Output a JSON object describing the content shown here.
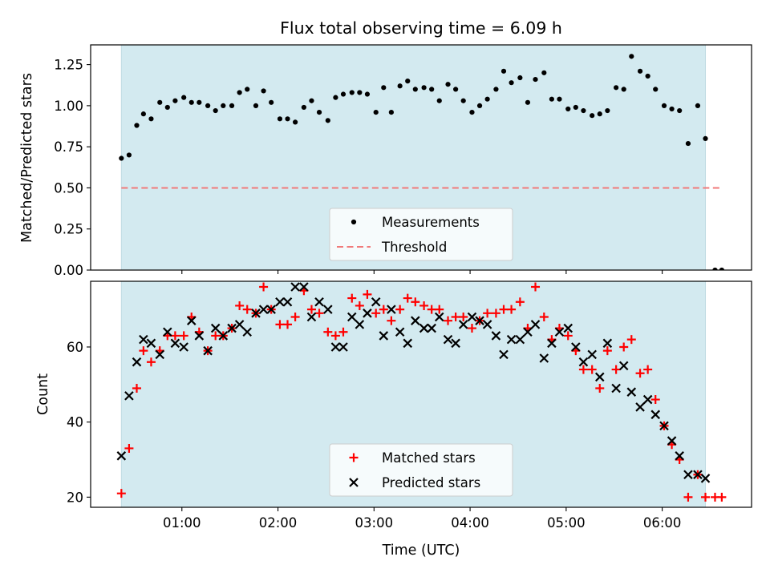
{
  "title": "Flux total observing time = 6.09 h",
  "colors": {
    "shade": "#d3eaf0",
    "matched": "#ff0000",
    "predicted": "#000000",
    "threshold": "#f07a7a",
    "measurement": "#000000"
  },
  "chart_data": [
    {
      "type": "scatter",
      "ylabel": "Matched/Predicted stars",
      "xlabel": "",
      "xlim": [
        0.05,
        6.93
      ],
      "ylim": [
        0,
        1.37
      ],
      "yticks": [
        0.0,
        0.25,
        0.5,
        0.75,
        1.0,
        1.25
      ],
      "ytick_labels": [
        "0.00",
        "0.25",
        "0.50",
        "0.75",
        "1.00",
        "1.25"
      ],
      "shaded_span": [
        0.37,
        6.45
      ],
      "legend_position": "lower center",
      "legend": [
        "Measurements",
        "Threshold"
      ],
      "threshold": {
        "name": "Threshold",
        "y": 0.5,
        "x": [
          0.37,
          6.62
        ]
      },
      "series": [
        {
          "name": "Measurements",
          "x": [
            0.37,
            0.45,
            0.53,
            0.6,
            0.68,
            0.77,
            0.85,
            0.93,
            1.02,
            1.1,
            1.18,
            1.27,
            1.35,
            1.43,
            1.52,
            1.6,
            1.68,
            1.77,
            1.85,
            1.93,
            2.02,
            2.1,
            2.18,
            2.27,
            2.35,
            2.43,
            2.52,
            2.6,
            2.68,
            2.77,
            2.85,
            2.93,
            3.02,
            3.1,
            3.18,
            3.27,
            3.35,
            3.43,
            3.52,
            3.6,
            3.68,
            3.77,
            3.85,
            3.93,
            4.02,
            4.1,
            4.18,
            4.27,
            4.35,
            4.43,
            4.52,
            4.6,
            4.68,
            4.77,
            4.85,
            4.93,
            5.02,
            5.1,
            5.18,
            5.27,
            5.35,
            5.43,
            5.52,
            5.6,
            5.68,
            5.77,
            5.85,
            5.93,
            6.02,
            6.1,
            6.18,
            6.27,
            6.37,
            6.45,
            6.55,
            6.62
          ],
          "y": [
            0.68,
            0.7,
            0.88,
            0.95,
            0.92,
            1.02,
            0.99,
            1.03,
            1.05,
            1.02,
            1.02,
            1.0,
            0.97,
            1.0,
            1.0,
            1.08,
            1.1,
            1.0,
            1.09,
            1.02,
            0.92,
            0.92,
            0.9,
            0.99,
            1.03,
            0.96,
            0.91,
            1.05,
            1.07,
            1.08,
            1.08,
            1.07,
            0.96,
            1.11,
            0.96,
            1.12,
            1.15,
            1.1,
            1.11,
            1.1,
            1.03,
            1.13,
            1.1,
            1.03,
            0.96,
            1.0,
            1.04,
            1.1,
            1.21,
            1.14,
            1.17,
            1.02,
            1.16,
            1.2,
            1.04,
            1.04,
            0.98,
            0.99,
            0.97,
            0.94,
            0.95,
            0.97,
            1.11,
            1.1,
            1.3,
            1.21,
            1.18,
            1.1,
            1.0,
            0.98,
            0.97,
            0.77,
            1.0,
            0.8,
            0.0,
            0.0
          ]
        }
      ]
    },
    {
      "type": "scatter",
      "xlabel": "Time (UTC)",
      "ylabel": "Count",
      "xlim": [
        0.05,
        6.93
      ],
      "ylim": [
        17.3,
        77.5
      ],
      "yticks": [
        20,
        40,
        60
      ],
      "ytick_labels": [
        "20",
        "40",
        "60"
      ],
      "xticks": [
        1,
        2,
        3,
        4,
        5,
        6
      ],
      "xtick_labels": [
        "01:00",
        "02:00",
        "03:00",
        "04:00",
        "05:00",
        "06:00"
      ],
      "shaded_span": [
        0.37,
        6.45
      ],
      "legend_position": "lower center",
      "legend": [
        "Matched stars",
        "Predicted stars"
      ],
      "series": [
        {
          "name": "Matched stars",
          "marker": "+",
          "x": [
            0.37,
            0.45,
            0.53,
            0.6,
            0.68,
            0.77,
            0.85,
            0.93,
            1.02,
            1.1,
            1.18,
            1.27,
            1.35,
            1.43,
            1.52,
            1.6,
            1.68,
            1.77,
            1.85,
            1.93,
            2.02,
            2.1,
            2.18,
            2.27,
            2.35,
            2.43,
            2.52,
            2.6,
            2.68,
            2.77,
            2.85,
            2.93,
            3.02,
            3.1,
            3.18,
            3.27,
            3.35,
            3.43,
            3.52,
            3.6,
            3.68,
            3.77,
            3.85,
            3.93,
            4.02,
            4.1,
            4.18,
            4.27,
            4.35,
            4.43,
            4.52,
            4.6,
            4.68,
            4.77,
            4.85,
            4.93,
            5.02,
            5.1,
            5.18,
            5.27,
            5.35,
            5.43,
            5.52,
            5.6,
            5.68,
            5.77,
            5.85,
            5.93,
            6.02,
            6.1,
            6.18,
            6.27,
            6.37,
            6.45,
            6.55,
            6.62
          ],
          "y": [
            21,
            33,
            49,
            59,
            56,
            59,
            63,
            63,
            63,
            68,
            64,
            59,
            63,
            63,
            65,
            71,
            70,
            69,
            76,
            70,
            66,
            66,
            68,
            75,
            70,
            69,
            64,
            63,
            64,
            73,
            71,
            74,
            69,
            70,
            67,
            70,
            73,
            72,
            71,
            70,
            70,
            67,
            68,
            68,
            65,
            67,
            69,
            69,
            70,
            70,
            72,
            65,
            76,
            68,
            62,
            65,
            63,
            59,
            54,
            54,
            49,
            59,
            54,
            60,
            62,
            53,
            54,
            46,
            39,
            34,
            30,
            20,
            26,
            20,
            20,
            20
          ]
        },
        {
          "name": "Predicted stars",
          "marker": "x",
          "x": [
            0.37,
            0.45,
            0.53,
            0.6,
            0.68,
            0.77,
            0.85,
            0.93,
            1.02,
            1.1,
            1.18,
            1.27,
            1.35,
            1.43,
            1.52,
            1.6,
            1.68,
            1.77,
            1.85,
            1.93,
            2.02,
            2.1,
            2.18,
            2.27,
            2.35,
            2.43,
            2.52,
            2.6,
            2.68,
            2.77,
            2.85,
            2.93,
            3.02,
            3.1,
            3.18,
            3.27,
            3.35,
            3.43,
            3.52,
            3.6,
            3.68,
            3.77,
            3.85,
            3.93,
            4.02,
            4.1,
            4.18,
            4.27,
            4.35,
            4.43,
            4.52,
            4.6,
            4.68,
            4.77,
            4.85,
            4.93,
            5.02,
            5.1,
            5.18,
            5.27,
            5.35,
            5.43,
            5.52,
            5.6,
            5.68,
            5.77,
            5.85,
            5.93,
            6.02,
            6.1,
            6.18,
            6.27,
            6.37,
            6.45
          ],
          "y": [
            31,
            47,
            56,
            62,
            61,
            58,
            64,
            61,
            60,
            67,
            63,
            59,
            65,
            63,
            65,
            66,
            64,
            69,
            70,
            70,
            72,
            72,
            76,
            76,
            68,
            72,
            70,
            60,
            60,
            68,
            66,
            69,
            72,
            63,
            70,
            64,
            61,
            67,
            65,
            65,
            68,
            62,
            61,
            66,
            68,
            67,
            66,
            63,
            58,
            62,
            62,
            64,
            66,
            57,
            61,
            64,
            65,
            60,
            56,
            58,
            52,
            61,
            49,
            55,
            48,
            44,
            46,
            42,
            39,
            35,
            31,
            26,
            26,
            25
          ]
        }
      ]
    }
  ]
}
